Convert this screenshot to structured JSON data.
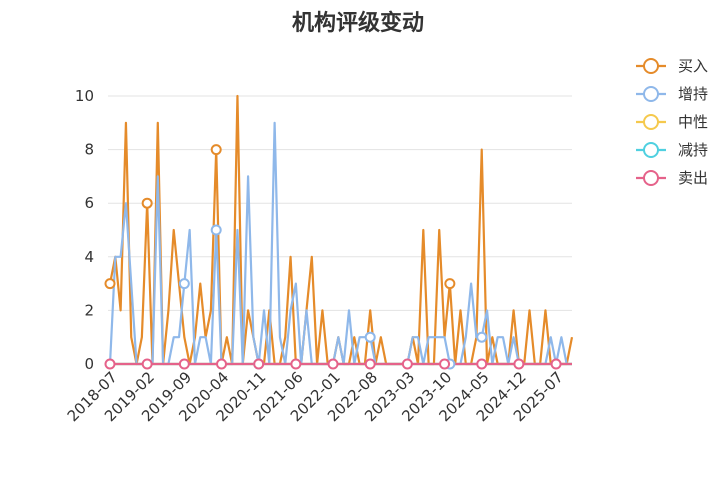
{
  "chart_data": {
    "type": "line",
    "title": "机构评级变动",
    "xlabel": "",
    "ylabel": "",
    "ylim": [
      0,
      10
    ],
    "yticks": [
      0,
      2,
      4,
      6,
      8,
      10
    ],
    "grid": true,
    "legend_position": "right",
    "x_tick_labels": [
      "2018-07",
      "2019-02",
      "2019-09",
      "2020-04",
      "2020-11",
      "2021-06",
      "2022-01",
      "2022-08",
      "2023-03",
      "2023-10",
      "2024-05",
      "2024-12",
      "2025-07"
    ],
    "x_tick_index": [
      0,
      7,
      14,
      21,
      28,
      35,
      42,
      49,
      56,
      63,
      70,
      77,
      84
    ],
    "x_count": 88,
    "series": [
      {
        "name": "买入",
        "color": "#e58b2a",
        "values": [
          3,
          4,
          2,
          9,
          1,
          0,
          1,
          6,
          0,
          9,
          0,
          2,
          5,
          3,
          1,
          0,
          1,
          3,
          1,
          2,
          8,
          0,
          1,
          0,
          10,
          0,
          2,
          1,
          0,
          0,
          2,
          0,
          0,
          1,
          4,
          0,
          0,
          2,
          4,
          0,
          2,
          0,
          0,
          1,
          0,
          0,
          1,
          0,
          0,
          2,
          0,
          1,
          0,
          0,
          0,
          0,
          0,
          1,
          0,
          5,
          0,
          0,
          5,
          1,
          3,
          0,
          2,
          0,
          0,
          1,
          8,
          0,
          1,
          0,
          0,
          0,
          2,
          0,
          0,
          2,
          0,
          0,
          2,
          0,
          0,
          0,
          0,
          1
        ],
        "marked": [
          0,
          7,
          20,
          64
        ]
      },
      {
        "name": "增持",
        "color": "#8fb8ea",
        "values": [
          0,
          4,
          4,
          6,
          3,
          0,
          0,
          0,
          0,
          7,
          0,
          0,
          1,
          1,
          3,
          5,
          0,
          1,
          1,
          0,
          5,
          0,
          0,
          0,
          5,
          0,
          7,
          1,
          0,
          2,
          0,
          9,
          1,
          0,
          2,
          3,
          0,
          2,
          0,
          0,
          0,
          0,
          0,
          1,
          0,
          2,
          0,
          1,
          1,
          1,
          0,
          0,
          0,
          0,
          0,
          0,
          0,
          1,
          1,
          0,
          1,
          1,
          1,
          1,
          0,
          0,
          0,
          1,
          3,
          1,
          1,
          2,
          0,
          1,
          1,
          0,
          1,
          0,
          0,
          0,
          0,
          0,
          0,
          1,
          0,
          1,
          0,
          0
        ],
        "marked": [
          14,
          20,
          28,
          49,
          64,
          70
        ]
      },
      {
        "name": "中性",
        "color": "#f5c94d",
        "values": [
          0,
          0,
          0,
          0,
          0,
          0,
          0,
          0,
          0,
          0,
          0,
          0,
          0,
          0,
          0,
          0,
          0,
          0,
          0,
          0,
          0,
          0,
          0,
          0,
          0,
          0,
          0,
          0,
          0,
          0,
          0,
          0,
          0,
          0,
          0,
          0,
          0,
          0,
          0,
          0,
          0,
          0,
          0,
          0,
          0,
          0,
          0,
          0,
          0,
          0,
          0,
          0,
          0,
          0,
          0,
          0,
          0,
          0,
          0,
          0,
          0,
          0,
          0,
          0,
          0,
          0,
          0,
          0,
          0,
          0,
          0,
          0,
          0,
          0,
          0,
          0,
          0,
          0,
          0,
          0,
          0,
          0,
          0,
          0,
          0,
          0,
          0,
          0
        ],
        "marked": []
      },
      {
        "name": "减持",
        "color": "#4fd0e0",
        "values": [
          0,
          0,
          0,
          0,
          0,
          0,
          0,
          0,
          0,
          0,
          0,
          0,
          0,
          0,
          0,
          0,
          0,
          0,
          0,
          0,
          0,
          0,
          0,
          0,
          0,
          0,
          0,
          0,
          0,
          0,
          0,
          0,
          0,
          0,
          0,
          0,
          0,
          0,
          0,
          0,
          0,
          0,
          0,
          0,
          0,
          0,
          0,
          0,
          0,
          0,
          0,
          0,
          0,
          0,
          0,
          0,
          0,
          0,
          0,
          0,
          0,
          0,
          0,
          0,
          0,
          0,
          0,
          0,
          0,
          0,
          0,
          0,
          0,
          0,
          0,
          0,
          0,
          0,
          0,
          0,
          0,
          0,
          0,
          0,
          0,
          0,
          0,
          0
        ],
        "marked": []
      },
      {
        "name": "卖出",
        "color": "#e5628a",
        "values": [
          0,
          0,
          0,
          0,
          0,
          0,
          0,
          0,
          0,
          0,
          0,
          0,
          0,
          0,
          0,
          0,
          0,
          0,
          0,
          0,
          0,
          0,
          0,
          0,
          0,
          0,
          0,
          0,
          0,
          0,
          0,
          0,
          0,
          0,
          0,
          0,
          0,
          0,
          0,
          0,
          0,
          0,
          0,
          0,
          0,
          0,
          0,
          0,
          0,
          0,
          0,
          0,
          0,
          0,
          0,
          0,
          0,
          0,
          0,
          0,
          0,
          0,
          0,
          0,
          0,
          0,
          0,
          0,
          0,
          0,
          0,
          0,
          0,
          0,
          0,
          0,
          0,
          0,
          0,
          0,
          0,
          0,
          0,
          0,
          0,
          0,
          0,
          0
        ],
        "marked": [
          0,
          7,
          14,
          21,
          28,
          35,
          42,
          49,
          56,
          63,
          70,
          77,
          84
        ]
      }
    ]
  }
}
